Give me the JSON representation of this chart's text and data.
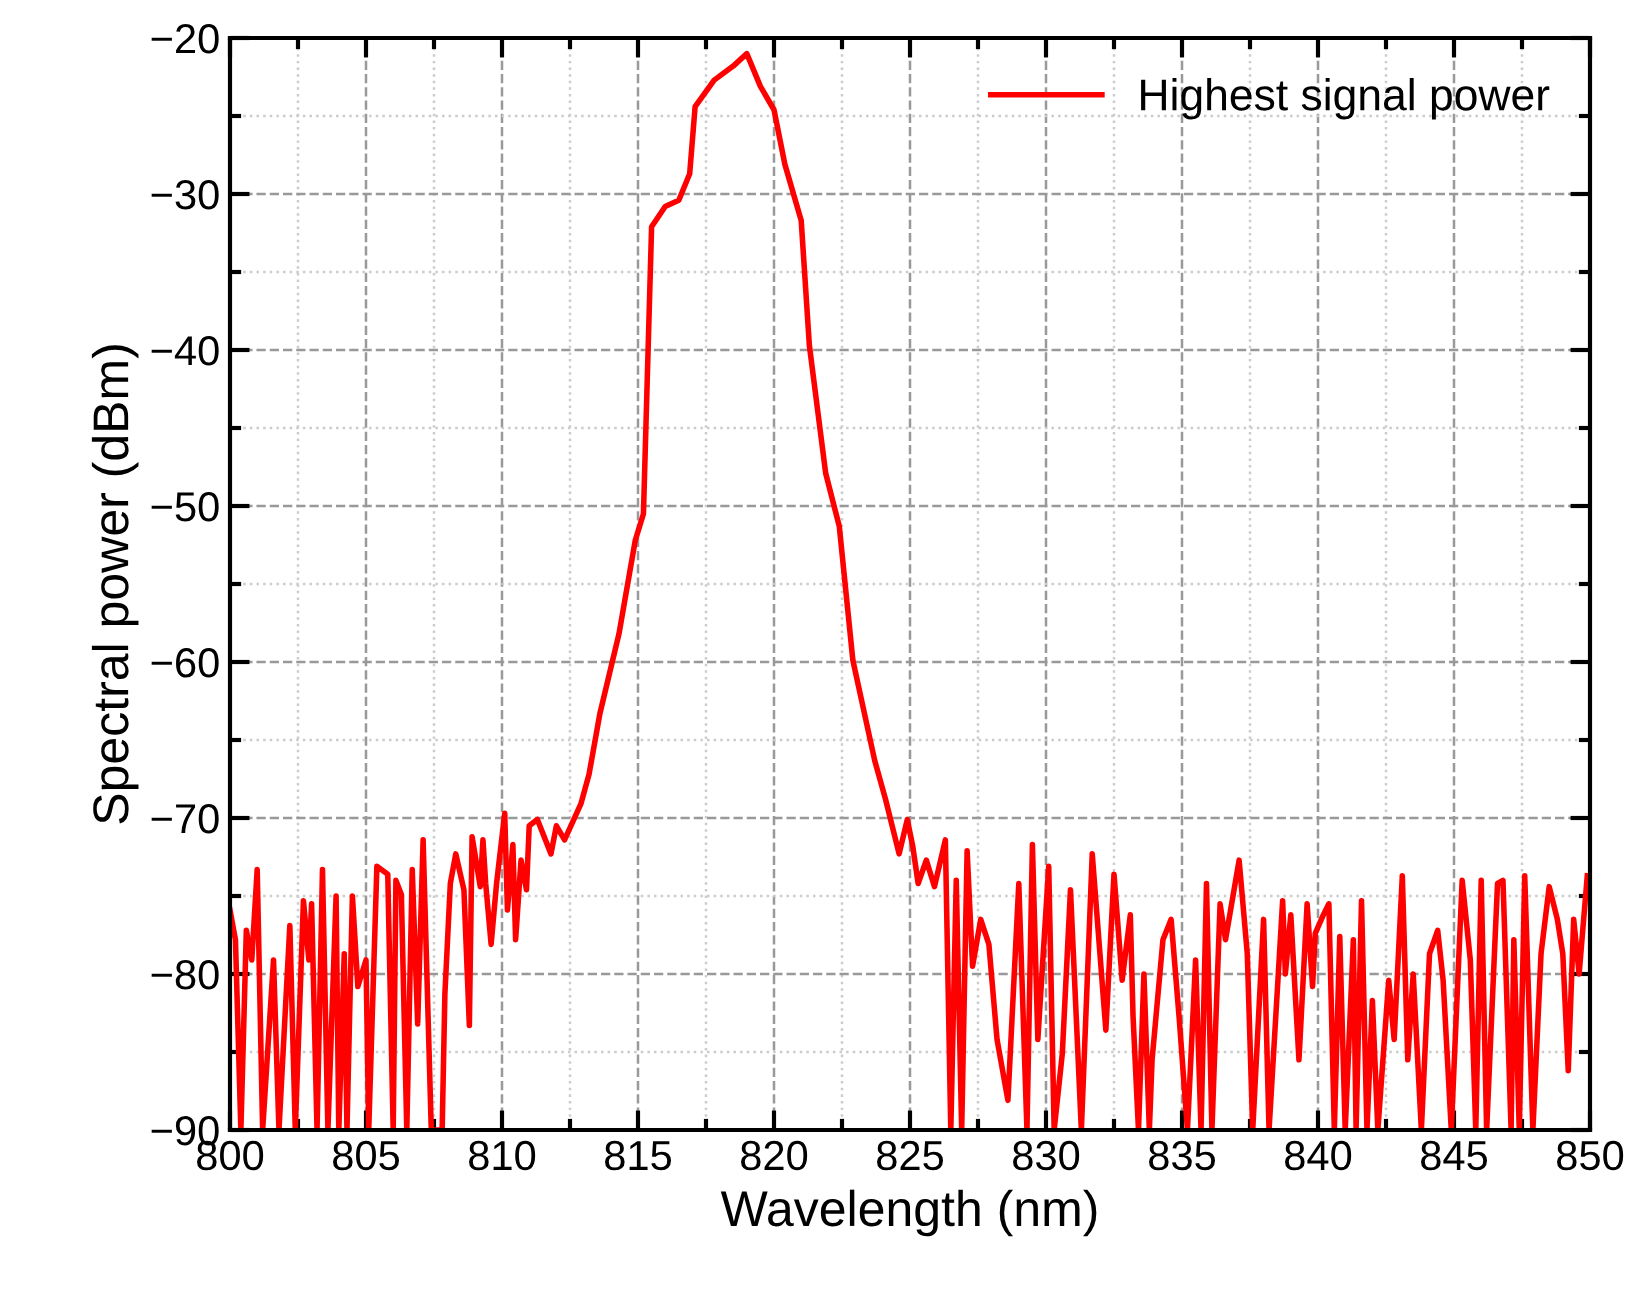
{
  "chart_data": {
    "type": "line",
    "xlabel": "Wavelength (nm)",
    "ylabel": "Spectral power (dBm)",
    "xlim": [
      800,
      850
    ],
    "xticks": [
      800,
      805,
      810,
      815,
      820,
      825,
      830,
      835,
      840,
      845,
      850
    ],
    "ylim": [
      -90,
      -20
    ],
    "yticks": [
      -90,
      -80,
      -70,
      -60,
      -50,
      -40,
      -30,
      -20
    ],
    "grid": true,
    "legend": "top right",
    "line_style": "solid",
    "marker": "none",
    "series": [
      {
        "name": "Highest signal power",
        "color": "#ff0000",
        "x": [
          800.0,
          800.2,
          800.4,
          800.6,
          800.8,
          801.0,
          801.2,
          801.6,
          801.8,
          802.2,
          802.4,
          802.7,
          802.9,
          803.0,
          803.2,
          803.4,
          803.6,
          803.9,
          804.0,
          804.2,
          804.3,
          804.5,
          804.7,
          805.0,
          805.1,
          805.4,
          805.8,
          806.0,
          806.1,
          806.3,
          806.5,
          806.7,
          806.9,
          807.1,
          807.4,
          807.8,
          807.9,
          808.1,
          808.3,
          808.6,
          808.8,
          808.9,
          809.2,
          809.3,
          809.4,
          809.6,
          809.8,
          810.1,
          810.2,
          810.4,
          810.5,
          810.7,
          810.9,
          811.0,
          811.3,
          811.8,
          812.0,
          812.3,
          812.9,
          813.2,
          813.6,
          814.3,
          814.9,
          815.2,
          815.5,
          816.0,
          816.5,
          816.9,
          817.1,
          817.8,
          818.5,
          819.0,
          819.5,
          820.0,
          820.4,
          821.0,
          821.3,
          821.9,
          822.4,
          822.9,
          823.7,
          824.1,
          824.6,
          824.9,
          825.1,
          825.3,
          825.6,
          825.9,
          826.3,
          826.5,
          826.7,
          826.9,
          827.1,
          827.3,
          827.6,
          827.9,
          828.2,
          828.6,
          829.0,
          829.3,
          829.5,
          829.7,
          830.1,
          830.3,
          830.6,
          830.9,
          831.3,
          831.7,
          832.2,
          832.5,
          832.8,
          833.1,
          833.2,
          833.4,
          833.6,
          833.8,
          833.9,
          834.3,
          834.6,
          834.9,
          835.2,
          835.5,
          835.7,
          835.9,
          836.1,
          836.4,
          836.6,
          837.1,
          837.4,
          837.6,
          838.0,
          838.2,
          838.7,
          838.8,
          839.0,
          839.3,
          839.6,
          839.8,
          839.9,
          840.2,
          840.4,
          840.6,
          840.8,
          841.0,
          841.3,
          841.4,
          841.6,
          841.8,
          842.0,
          842.2,
          842.6,
          842.8,
          843.1,
          843.3,
          843.5,
          843.8,
          844.1,
          844.4,
          844.6,
          844.9,
          845.3,
          845.6,
          845.8,
          846.0,
          846.2,
          846.6,
          846.8,
          847.1,
          847.2,
          847.4,
          847.6,
          847.9,
          848.2,
          848.5,
          848.8,
          849.0,
          849.2,
          849.4,
          849.6,
          849.9
        ],
        "values": [
          -75.9,
          -77.8,
          -90,
          -77.2,
          -79.1,
          -73.3,
          -90,
          -79.1,
          -90,
          -76.9,
          -90,
          -75.3,
          -79.1,
          -75.5,
          -90,
          -73.3,
          -90,
          -75.0,
          -90,
          -78.7,
          -90,
          -75.0,
          -80.8,
          -79.1,
          -90,
          -73.1,
          -73.6,
          -90,
          -74.0,
          -74.9,
          -90,
          -73.3,
          -83.2,
          -71.4,
          -90,
          -90,
          -81.3,
          -74.2,
          -72.3,
          -74.6,
          -83.3,
          -71.2,
          -74.4,
          -71.4,
          -74.2,
          -78.1,
          -74.2,
          -69.7,
          -75.9,
          -71.7,
          -77.8,
          -72.7,
          -74.6,
          -70.5,
          -70.1,
          -72.3,
          -70.5,
          -71.4,
          -69.1,
          -67.2,
          -63.3,
          -58.2,
          -52.2,
          -50.5,
          -32.1,
          -30.8,
          -30.4,
          -28.7,
          -24.4,
          -22.7,
          -21.8,
          -21.0,
          -23.1,
          -24.6,
          -28.1,
          -31.7,
          -39.7,
          -47.9,
          -51.3,
          -59.9,
          -66.3,
          -68.8,
          -72.3,
          -70.1,
          -71.8,
          -74.2,
          -72.7,
          -74.4,
          -71.4,
          -90,
          -74.0,
          -90,
          -72.1,
          -79.5,
          -76.5,
          -78.1,
          -84.2,
          -88.1,
          -74.2,
          -90,
          -71.7,
          -84.2,
          -73.1,
          -90,
          -85.1,
          -74.6,
          -90,
          -72.3,
          -83.6,
          -73.6,
          -80.4,
          -76.2,
          -82.7,
          -90,
          -80.0,
          -90,
          -85.5,
          -77.8,
          -76.5,
          -82.9,
          -90,
          -79.1,
          -90,
          -74.2,
          -90,
          -75.5,
          -77.8,
          -72.7,
          -78.7,
          -90,
          -76.5,
          -90,
          -75.3,
          -80.0,
          -76.2,
          -85.5,
          -75.5,
          -80.8,
          -77.4,
          -76.2,
          -75.5,
          -90,
          -77.6,
          -90,
          -77.8,
          -90,
          -75.3,
          -90,
          -81.7,
          -90,
          -80.4,
          -84.2,
          -73.7,
          -85.5,
          -80.0,
          -90,
          -78.7,
          -77.2,
          -80.4,
          -90,
          -74.0,
          -79.1,
          -90,
          -74.0,
          -90,
          -74.2,
          -74.0,
          -90,
          -77.8,
          -90,
          -73.7,
          -90,
          -78.7,
          -74.4,
          -76.5,
          -78.7,
          -86.2,
          -76.5,
          -80.0,
          -73.7
        ]
      }
    ]
  }
}
